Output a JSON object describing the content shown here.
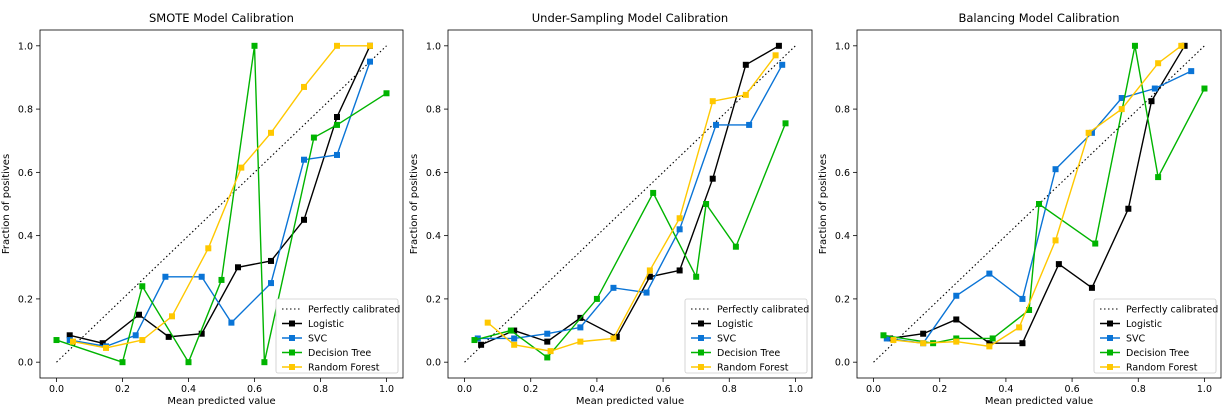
{
  "chart_data": [
    {
      "type": "line",
      "title": "SMOTE Model Calibration",
      "xlabel": "Mean predicted value",
      "ylabel": "Fraction of positives",
      "xlim": [
        -0.05,
        1.05
      ],
      "ylim": [
        -0.05,
        1.05
      ],
      "xticks": [
        "0.0",
        "0.2",
        "0.4",
        "0.6",
        "0.8",
        "1.0"
      ],
      "yticks": [
        "0.0",
        "0.2",
        "0.4",
        "0.6",
        "0.8",
        "1.0"
      ],
      "legend_position": "lower-right",
      "reference": {
        "name": "Perfectly calibrated",
        "x": [
          0,
          1
        ],
        "y": [
          0,
          1
        ]
      },
      "series": [
        {
          "name": "Logistic",
          "color": "#000000",
          "x": [
            0.04,
            0.14,
            0.25,
            0.34,
            0.44,
            0.55,
            0.65,
            0.75,
            0.85,
            0.95
          ],
          "y": [
            0.085,
            0.06,
            0.15,
            0.08,
            0.09,
            0.3,
            0.32,
            0.45,
            0.775,
            1.0
          ]
        },
        {
          "name": "SVC",
          "color": "#0a74d6",
          "x": [
            0.04,
            0.15,
            0.24,
            0.33,
            0.44,
            0.53,
            0.65,
            0.75,
            0.85,
            0.95
          ],
          "y": [
            0.07,
            0.05,
            0.085,
            0.27,
            0.27,
            0.125,
            0.25,
            0.64,
            0.655,
            0.95
          ]
        },
        {
          "name": "Decision Tree",
          "color": "#00b400",
          "x": [
            0.0,
            0.2,
            0.26,
            0.4,
            0.5,
            0.6,
            0.63,
            0.78,
            0.85,
            1.0
          ],
          "y": [
            0.07,
            0.0,
            0.24,
            0.0,
            0.26,
            1.0,
            0.0,
            0.71,
            0.75,
            0.85
          ]
        },
        {
          "name": "Random Forest",
          "color": "#ffc800",
          "x": [
            0.05,
            0.15,
            0.26,
            0.35,
            0.46,
            0.56,
            0.65,
            0.75,
            0.85,
            0.95
          ],
          "y": [
            0.065,
            0.045,
            0.07,
            0.145,
            0.36,
            0.615,
            0.725,
            0.87,
            1.0,
            1.0
          ]
        }
      ]
    },
    {
      "type": "line",
      "title": "Under-Sampling Model Calibration",
      "xlabel": "Mean predicted value",
      "ylabel": "Fraction of positives",
      "xlim": [
        -0.05,
        1.05
      ],
      "ylim": [
        -0.05,
        1.05
      ],
      "xticks": [
        "0.0",
        "0.2",
        "0.4",
        "0.6",
        "0.8",
        "1.0"
      ],
      "yticks": [
        "0.0",
        "0.2",
        "0.4",
        "0.6",
        "0.8",
        "1.0"
      ],
      "legend_position": "lower-right",
      "reference": {
        "name": "Perfectly calibrated",
        "x": [
          0,
          1
        ],
        "y": [
          0,
          1
        ]
      },
      "series": [
        {
          "name": "Logistic",
          "color": "#000000",
          "x": [
            0.05,
            0.15,
            0.25,
            0.35,
            0.46,
            0.56,
            0.65,
            0.75,
            0.85,
            0.95
          ],
          "y": [
            0.055,
            0.1,
            0.065,
            0.14,
            0.08,
            0.27,
            0.29,
            0.58,
            0.94,
            1.0
          ]
        },
        {
          "name": "SVC",
          "color": "#0a74d6",
          "x": [
            0.04,
            0.15,
            0.25,
            0.35,
            0.45,
            0.55,
            0.65,
            0.76,
            0.86,
            0.96
          ],
          "y": [
            0.075,
            0.075,
            0.09,
            0.11,
            0.235,
            0.22,
            0.42,
            0.75,
            0.75,
            0.94
          ]
        },
        {
          "name": "Decision Tree",
          "color": "#00b400",
          "x": [
            0.03,
            0.14,
            0.25,
            0.4,
            0.57,
            0.7,
            0.73,
            0.82,
            0.97
          ],
          "y": [
            0.07,
            0.1,
            0.015,
            0.2,
            0.535,
            0.27,
            0.5,
            0.365,
            0.755
          ]
        },
        {
          "name": "Random Forest",
          "color": "#ffc800",
          "x": [
            0.07,
            0.15,
            0.26,
            0.35,
            0.45,
            0.56,
            0.65,
            0.75,
            0.85,
            0.94
          ],
          "y": [
            0.125,
            0.055,
            0.035,
            0.065,
            0.075,
            0.29,
            0.455,
            0.825,
            0.845,
            0.97
          ]
        }
      ]
    },
    {
      "type": "line",
      "title": "Balancing Model Calibration",
      "xlabel": "Mean predicted value",
      "ylabel": "Fraction of positives",
      "xlim": [
        -0.05,
        1.05
      ],
      "ylim": [
        -0.05,
        1.05
      ],
      "xticks": [
        "0.0",
        "0.2",
        "0.4",
        "0.6",
        "0.8",
        "1.0"
      ],
      "yticks": [
        "0.0",
        "0.2",
        "0.4",
        "0.6",
        "0.8",
        "1.0"
      ],
      "legend_position": "lower-right",
      "reference": {
        "name": "Perfectly calibrated",
        "x": [
          0,
          1
        ],
        "y": [
          0,
          1
        ]
      },
      "series": [
        {
          "name": "Logistic",
          "color": "#000000",
          "x": [
            0.05,
            0.15,
            0.25,
            0.35,
            0.45,
            0.56,
            0.66,
            0.77,
            0.84,
            0.94
          ],
          "y": [
            0.075,
            0.09,
            0.135,
            0.06,
            0.06,
            0.31,
            0.235,
            0.485,
            0.825,
            1.0
          ]
        },
        {
          "name": "SVC",
          "color": "#0a74d6",
          "x": [
            0.04,
            0.15,
            0.25,
            0.35,
            0.45,
            0.55,
            0.66,
            0.75,
            0.85,
            0.96
          ],
          "y": [
            0.075,
            0.06,
            0.21,
            0.28,
            0.2,
            0.61,
            0.725,
            0.835,
            0.865,
            0.92
          ]
        },
        {
          "name": "Decision Tree",
          "color": "#00b400",
          "x": [
            0.03,
            0.18,
            0.25,
            0.36,
            0.47,
            0.5,
            0.67,
            0.79,
            0.86,
            1.0
          ],
          "y": [
            0.085,
            0.06,
            0.075,
            0.075,
            0.165,
            0.5,
            0.375,
            1.0,
            0.585,
            0.865
          ]
        },
        {
          "name": "Random Forest",
          "color": "#ffc800",
          "x": [
            0.06,
            0.15,
            0.25,
            0.35,
            0.44,
            0.55,
            0.65,
            0.75,
            0.86,
            0.93
          ],
          "y": [
            0.07,
            0.06,
            0.065,
            0.05,
            0.11,
            0.385,
            0.725,
            0.8,
            0.945,
            1.0
          ]
        }
      ]
    }
  ]
}
